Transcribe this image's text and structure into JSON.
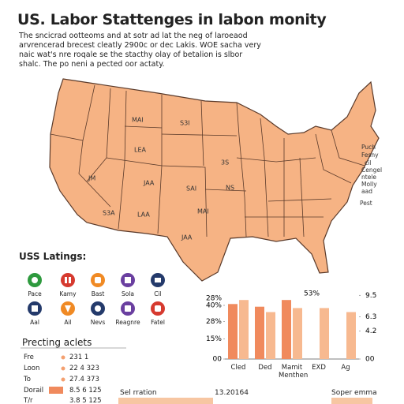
{
  "header": {
    "title": "US. Labor Stattenges in labon monity",
    "description": [
      "The sncicrad ootteoms and at sotr ad lat the neg of laroeaod",
      "arvrencerad brecest cleatly 2900c or dec Lakis. WOE sacha very",
      "naic wat's nre roqale se the stacthy olay of betalion is slbor",
      "shalc. The po neni a pected oor actaty."
    ]
  },
  "map": {
    "state_labels": [
      "MAI",
      "S3I",
      "LEA",
      "JM",
      "JAA",
      "SAI",
      "S3A",
      "LAA",
      "MAI",
      "JAA",
      "3S",
      "NS"
    ],
    "coast_labels": [
      "Puch",
      "Fesny",
      "cil",
      "Cengel",
      "ntele",
      "Molly",
      "aad",
      "Pest"
    ]
  },
  "legend": {
    "title": "USS Latings:",
    "items": [
      "Pace",
      "Kamy",
      "Bast",
      "Sola",
      "Cil",
      "Aal",
      "Ail",
      "Nevs",
      "Reagnre",
      "Fatel"
    ]
  },
  "list": {
    "title": "Precting aclets",
    "rows": [
      [
        "Fre",
        "231 1"
      ],
      [
        "Loon",
        "22 4 323"
      ],
      [
        "To",
        "27.4 373"
      ],
      [
        "Dorail",
        "8.5 6 125"
      ],
      [
        "T/r",
        "3.8 5 125"
      ]
    ]
  },
  "chart_data": {
    "type": "bar",
    "categories": [
      "Cled",
      "Ded",
      "Mamit Menthen",
      "EXD",
      "Ag"
    ],
    "series": [
      {
        "color": "#f08a5d",
        "values": [
          41,
          39,
          44,
          null,
          null
        ]
      },
      {
        "color": "#f7b990",
        "values": [
          44,
          35,
          38,
          38,
          35
        ]
      }
    ],
    "ylim": [
      0,
      50
    ],
    "yticks": [
      {
        "value": 0,
        "label": "00"
      },
      {
        "value": 15,
        "label": "15%"
      },
      {
        "value": 28,
        "label": "28%"
      },
      {
        "value": 40,
        "label": "40%"
      }
    ],
    "y2lim": [
      0,
      10
    ],
    "y2ticks": [
      {
        "value": 0,
        "label": "00"
      },
      4.2,
      6.3,
      9.5
    ],
    "annotations": [
      "28%",
      "53%"
    ]
  },
  "footer": {
    "left": "Sel rration",
    "center": "13.20164",
    "right": "Soper emma"
  }
}
